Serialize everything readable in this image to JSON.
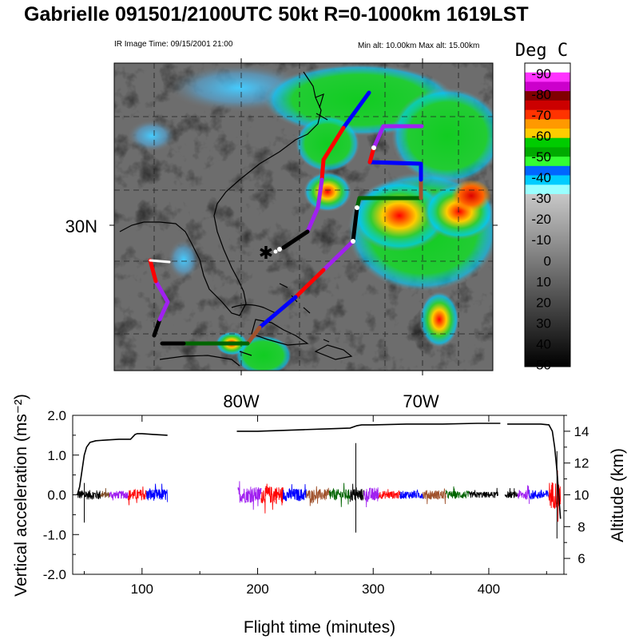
{
  "title": "Gabrielle 091501/2100UTC 50kt  R=0-1000km 1619LST",
  "ir_time_label": "IR Image Time: 09/15/2001 21:00",
  "alt_label": "Min alt: 10.00km  Max alt: 15.00km",
  "colorbar": {
    "title": "Deg C",
    "ticks": [
      "-90",
      "-80",
      "-70",
      "-60",
      "-50",
      "-40",
      "-30",
      "-20",
      "-10",
      "0",
      "10",
      "20",
      "30",
      "40",
      "50"
    ],
    "colors": [
      "#ffffff",
      "#ff33ff",
      "#cc00cc",
      "#800000",
      "#cc0000",
      "#ff3300",
      "#ff9900",
      "#ffcc00",
      "#00cc00",
      "#00aa00",
      "#33ff33",
      "#0066ff",
      "#00ccff",
      "#99ffff"
    ]
  },
  "map": {
    "lat_label": "30N",
    "lon_labels": [
      "80W",
      "70W"
    ],
    "marker": "✱"
  },
  "chart_data": {
    "type": "line",
    "xlabel": "Flight time (minutes)",
    "ylabel_left": "Vertical acceleration (ms⁻²)",
    "ylabel_right": "Altitude (km)",
    "xlim": [
      40,
      465
    ],
    "xticks": [
      100,
      200,
      300,
      400
    ],
    "ylim_left": [
      -2.0,
      2.0
    ],
    "yticks_left": [
      "2.0",
      "1.0",
      "0.0",
      "-1.0",
      "-2.0"
    ],
    "ylim_right": [
      5,
      15
    ],
    "yticks_right": [
      "14",
      "12",
      "10",
      "8",
      "6"
    ],
    "altitude_series": [
      {
        "x": [
          44,
          46,
          48,
          50,
          52,
          55,
          60,
          70,
          80,
          90,
          94,
          96,
          100,
          110,
          122
        ],
        "y": [
          10,
          10.5,
          11.5,
          12.5,
          13,
          13.3,
          13.4,
          13.45,
          13.5,
          13.5,
          13.8,
          13.85,
          13.85,
          13.8,
          13.75
        ]
      },
      {
        "x": [
          182,
          200,
          220,
          240,
          260,
          280,
          286,
          290,
          300,
          330,
          360,
          390,
          410
        ],
        "y": [
          14,
          14,
          14.05,
          14.1,
          14.15,
          14.2,
          14.35,
          14.4,
          14.4,
          14.45,
          14.45,
          14.5,
          14.5
        ]
      },
      {
        "x": [
          416,
          430,
          445,
          452,
          455,
          457,
          459,
          462
        ],
        "y": [
          14.45,
          14.45,
          14.45,
          14.4,
          14,
          13,
          11.5,
          8.5
        ]
      }
    ],
    "acceleration_segments": [
      {
        "x0": 44,
        "x1": 64,
        "color": "#000000",
        "amp": 0.12
      },
      {
        "x0": 64,
        "x1": 72,
        "color": "#7f4f2a",
        "amp": 0.08
      },
      {
        "x0": 72,
        "x1": 88,
        "color": "#a020f0",
        "amp": 0.1
      },
      {
        "x0": 88,
        "x1": 104,
        "color": "#ff0000",
        "amp": 0.14
      },
      {
        "x0": 104,
        "x1": 122,
        "color": "#0000ff",
        "amp": 0.15
      },
      {
        "x0": 183,
        "x1": 203,
        "color": "#a020f0",
        "amp": 0.2
      },
      {
        "x0": 203,
        "x1": 222,
        "color": "#ff0000",
        "amp": 0.22
      },
      {
        "x0": 222,
        "x1": 242,
        "color": "#0000ff",
        "amp": 0.16
      },
      {
        "x0": 242,
        "x1": 262,
        "color": "#a0522d",
        "amp": 0.14
      },
      {
        "x0": 262,
        "x1": 280,
        "color": "#006400",
        "amp": 0.14
      },
      {
        "x0": 280,
        "x1": 292,
        "color": "#000000",
        "amp": 0.16
      },
      {
        "x0": 292,
        "x1": 305,
        "color": "#a020f0",
        "amp": 0.18
      },
      {
        "x0": 305,
        "x1": 323,
        "color": "#ff0000",
        "amp": 0.1
      },
      {
        "x0": 323,
        "x1": 343,
        "color": "#0000ff",
        "amp": 0.1
      },
      {
        "x0": 343,
        "x1": 363,
        "color": "#a0522d",
        "amp": 0.12
      },
      {
        "x0": 363,
        "x1": 383,
        "color": "#006400",
        "amp": 0.1
      },
      {
        "x0": 383,
        "x1": 408,
        "color": "#000000",
        "amp": 0.08
      },
      {
        "x0": 414,
        "x1": 425,
        "color": "#000000",
        "amp": 0.08
      },
      {
        "x0": 425,
        "x1": 435,
        "color": "#a020f0",
        "amp": 0.12
      },
      {
        "x0": 435,
        "x1": 452,
        "color": "#0000ff",
        "amp": 0.12
      },
      {
        "x0": 452,
        "x1": 462,
        "color": "#ff0000",
        "amp": 0.35
      }
    ],
    "spikes": [
      {
        "x": 50,
        "min": -0.7,
        "max": 0.3
      },
      {
        "x": 285,
        "min": -0.95,
        "max": 1.3
      },
      {
        "x": 459,
        "min": -1.1,
        "max": 1.1
      }
    ]
  }
}
